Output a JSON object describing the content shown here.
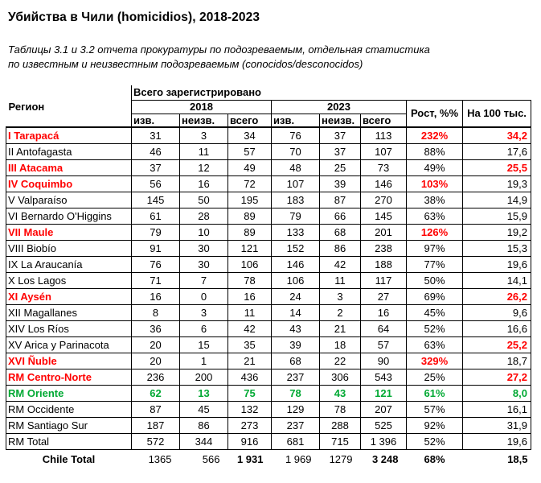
{
  "title": "Убийства в Чили (homicidios), 2018-2023",
  "subtitle_line1": "Таблицы 3.1 и 3.2 отчета прокуратуры по подозреваемым, отдельная статистика",
  "subtitle_line2": "по известным и неизвестным подозреваемым (conocidos/desconocidos)",
  "colors": {
    "red": "#ff0000",
    "green": "#00a933",
    "text": "#000000",
    "background": "#ffffff"
  },
  "table": {
    "super_header": "Всего зарегистрировано",
    "region_header": "Регион",
    "year_left": "2018",
    "year_right": "2023",
    "sub_headers": [
      "изв.",
      "неизв.",
      "всего",
      "изв.",
      "неизв.",
      "всего"
    ],
    "growth_header": "Рост, %%",
    "per100k_header": "На 100 тыс.",
    "rows": [
      {
        "region": "I Tarapacá",
        "tone": "red",
        "values": [
          "31",
          "3",
          "34",
          "76",
          "37",
          "113"
        ],
        "values_tone": "",
        "growth": "232%",
        "growth_tone": "red",
        "per100k": "34,2",
        "per100k_tone": "red"
      },
      {
        "region": "II Antofagasta",
        "tone": "",
        "values": [
          "46",
          "11",
          "57",
          "70",
          "37",
          "107"
        ],
        "values_tone": "",
        "growth": "88%",
        "growth_tone": "",
        "per100k": "17,6",
        "per100k_tone": ""
      },
      {
        "region": "III Atacama",
        "tone": "red",
        "values": [
          "37",
          "12",
          "49",
          "48",
          "25",
          "73"
        ],
        "values_tone": "",
        "growth": "49%",
        "growth_tone": "",
        "per100k": "25,5",
        "per100k_tone": "red"
      },
      {
        "region": "IV Coquimbo",
        "tone": "red",
        "values": [
          "56",
          "16",
          "72",
          "107",
          "39",
          "146"
        ],
        "values_tone": "",
        "growth": "103%",
        "growth_tone": "red",
        "per100k": "19,3",
        "per100k_tone": ""
      },
      {
        "region": "V Valparaíso",
        "tone": "",
        "values": [
          "145",
          "50",
          "195",
          "183",
          "87",
          "270"
        ],
        "values_tone": "",
        "growth": "38%",
        "growth_tone": "",
        "per100k": "14,9",
        "per100k_tone": ""
      },
      {
        "region": "VI Bernardo O'Higgins",
        "tone": "",
        "values": [
          "61",
          "28",
          "89",
          "79",
          "66",
          "145"
        ],
        "values_tone": "",
        "growth": "63%",
        "growth_tone": "",
        "per100k": "15,9",
        "per100k_tone": ""
      },
      {
        "region": "VII Maule",
        "tone": "red",
        "values": [
          "79",
          "10",
          "89",
          "133",
          "68",
          "201"
        ],
        "values_tone": "",
        "growth": "126%",
        "growth_tone": "red",
        "per100k": "19,2",
        "per100k_tone": ""
      },
      {
        "region": "VIII Biobío",
        "tone": "",
        "values": [
          "91",
          "30",
          "121",
          "152",
          "86",
          "238"
        ],
        "values_tone": "",
        "growth": "97%",
        "growth_tone": "",
        "per100k": "15,3",
        "per100k_tone": ""
      },
      {
        "region": "IX La Araucanía",
        "tone": "",
        "values": [
          "76",
          "30",
          "106",
          "146",
          "42",
          "188"
        ],
        "values_tone": "",
        "growth": "77%",
        "growth_tone": "",
        "per100k": "19,6",
        "per100k_tone": ""
      },
      {
        "region": "X Los Lagos",
        "tone": "",
        "values": [
          "71",
          "7",
          "78",
          "106",
          "11",
          "117"
        ],
        "values_tone": "",
        "growth": "50%",
        "growth_tone": "",
        "per100k": "14,1",
        "per100k_tone": ""
      },
      {
        "region": "XI Aysén",
        "tone": "red",
        "values": [
          "16",
          "0",
          "16",
          "24",
          "3",
          "27"
        ],
        "values_tone": "",
        "growth": "69%",
        "growth_tone": "",
        "per100k": "26,2",
        "per100k_tone": "red"
      },
      {
        "region": "XII Magallanes",
        "tone": "",
        "values": [
          "8",
          "3",
          "11",
          "14",
          "2",
          "16"
        ],
        "values_tone": "",
        "growth": "45%",
        "growth_tone": "",
        "per100k": "9,6",
        "per100k_tone": ""
      },
      {
        "region": "XIV Los Ríos",
        "tone": "",
        "values": [
          "36",
          "6",
          "42",
          "43",
          "21",
          "64"
        ],
        "values_tone": "",
        "growth": "52%",
        "growth_tone": "",
        "per100k": "16,6",
        "per100k_tone": ""
      },
      {
        "region": "XV Arica y Parinacota",
        "tone": "",
        "values": [
          "20",
          "15",
          "35",
          "39",
          "18",
          "57"
        ],
        "values_tone": "",
        "growth": "63%",
        "growth_tone": "",
        "per100k": "25,2",
        "per100k_tone": "red"
      },
      {
        "region": "XVI Ñuble",
        "tone": "red",
        "values": [
          "20",
          "1",
          "21",
          "68",
          "22",
          "90"
        ],
        "values_tone": "",
        "growth": "329%",
        "growth_tone": "red",
        "per100k": "18,7",
        "per100k_tone": ""
      },
      {
        "region": "RM Centro-Norte",
        "tone": "red",
        "values": [
          "236",
          "200",
          "436",
          "237",
          "306",
          "543"
        ],
        "values_tone": "",
        "growth": "25%",
        "growth_tone": "",
        "per100k": "27,2",
        "per100k_tone": "red"
      },
      {
        "region": "RM Oriente",
        "tone": "green",
        "values": [
          "62",
          "13",
          "75",
          "78",
          "43",
          "121"
        ],
        "values_tone": "green",
        "growth": "61%",
        "growth_tone": "green",
        "per100k": "8,0",
        "per100k_tone": "green"
      },
      {
        "region": "RM Occidente",
        "tone": "",
        "values": [
          "87",
          "45",
          "132",
          "129",
          "78",
          "207"
        ],
        "values_tone": "",
        "growth": "57%",
        "growth_tone": "",
        "per100k": "16,1",
        "per100k_tone": ""
      },
      {
        "region": "RM Santiago Sur",
        "tone": "",
        "values": [
          "187",
          "86",
          "273",
          "237",
          "288",
          "525"
        ],
        "values_tone": "",
        "growth": "92%",
        "growth_tone": "",
        "per100k": "31,9",
        "per100k_tone": ""
      },
      {
        "region": "RM Total",
        "tone": "",
        "values": [
          "572",
          "344",
          "916",
          "681",
          "715",
          "1 396"
        ],
        "values_tone": "",
        "growth": "52%",
        "growth_tone": "",
        "per100k": "19,6",
        "per100k_tone": ""
      }
    ],
    "footer": {
      "label": "Chile Total",
      "values": [
        "1365",
        "566",
        "1 931",
        "1 969",
        "1279",
        "3 248"
      ],
      "values_bold": [
        false,
        false,
        true,
        false,
        false,
        true
      ],
      "growth": "68%",
      "per100k": "18,5"
    }
  }
}
